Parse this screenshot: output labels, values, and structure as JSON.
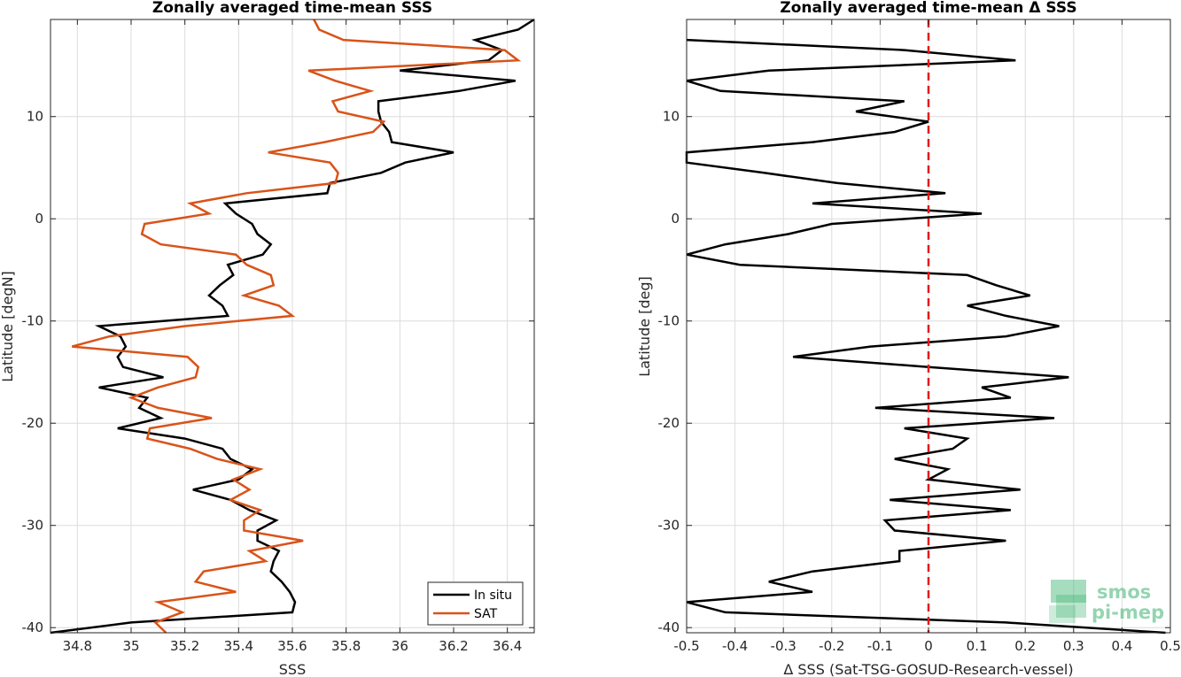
{
  "chart_data": [
    {
      "type": "line",
      "title": "Zonally averaged time-mean SSS",
      "xlabel": "SSS",
      "ylabel": "Latitude [degN]",
      "xlim": [
        34.7,
        36.5
      ],
      "ylim": [
        -40.5,
        19.5
      ],
      "xticks": [
        34.8,
        35,
        35.2,
        35.4,
        35.6,
        35.8,
        36,
        36.2,
        36.4
      ],
      "xtick_labels": [
        "34.8",
        "35",
        "35.2",
        "35.4",
        "35.6",
        "35.8",
        "36",
        "36.2",
        "36.4"
      ],
      "yticks": [
        -40,
        -30,
        -20,
        -10,
        0,
        10
      ],
      "ytick_labels": [
        "-40",
        "-30",
        "-20",
        "-10",
        "0",
        "10"
      ],
      "grid": true,
      "legend_position": "bottom-right",
      "series": [
        {
          "name": "In situ",
          "color": "#000000",
          "y": [
            19.5,
            18.5,
            17.5,
            16.5,
            15.5,
            14.5,
            13.5,
            12.5,
            11.5,
            10.5,
            9.5,
            8.5,
            7.5,
            6.5,
            5.5,
            4.5,
            3.5,
            2.5,
            1.5,
            0.5,
            -0.5,
            -1.5,
            -2.5,
            -3.5,
            -4.5,
            -5.5,
            -6.5,
            -7.5,
            -8.5,
            -9.5,
            -10.5,
            -11.5,
            -12.5,
            -13.5,
            -14.5,
            -15.5,
            -16.5,
            -17.5,
            -18.5,
            -19.5,
            -20.5,
            -21.5,
            -22.5,
            -23.5,
            -24.5,
            -25.5,
            -26.5,
            -27.5,
            -28.5,
            -29.5,
            -30.5,
            -31.5,
            -32.5,
            -33.5,
            -34.5,
            -35.5,
            -36.5,
            -37.5,
            -38.5,
            -39.5,
            -40.5
          ],
          "x": [
            36.5,
            36.44,
            36.28,
            36.38,
            36.33,
            36.0,
            36.43,
            36.22,
            35.92,
            35.92,
            35.93,
            35.96,
            35.97,
            36.2,
            36.02,
            35.93,
            35.74,
            35.73,
            35.35,
            35.39,
            35.45,
            35.47,
            35.52,
            35.49,
            35.36,
            35.38,
            35.33,
            35.29,
            35.34,
            35.36,
            34.88,
            34.96,
            34.98,
            34.95,
            34.97,
            35.12,
            34.88,
            35.06,
            35.03,
            35.11,
            34.95,
            35.2,
            35.34,
            35.37,
            35.45,
            35.4,
            35.23,
            35.37,
            35.44,
            35.54,
            35.47,
            35.47,
            35.55,
            35.53,
            35.52,
            35.56,
            35.59,
            35.61,
            35.6,
            35.0,
            34.7
          ]
        },
        {
          "name": "SAT",
          "color": "#d95319",
          "y": [
            19.5,
            18.5,
            17.5,
            16.5,
            15.5,
            14.5,
            13.5,
            12.5,
            11.5,
            10.5,
            9.5,
            8.5,
            7.5,
            6.5,
            5.5,
            4.5,
            3.5,
            2.5,
            1.5,
            0.5,
            -0.5,
            -1.5,
            -2.5,
            -3.5,
            -4.5,
            -5.5,
            -6.5,
            -7.5,
            -8.5,
            -9.5,
            -10.5,
            -11.5,
            -12.5,
            -13.5,
            -14.5,
            -15.5,
            -16.5,
            -17.5,
            -18.5,
            -19.5,
            -20.5,
            -21.5,
            -22.5,
            -23.5,
            -24.5,
            -25.5,
            -26.5,
            -27.5,
            -28.5,
            -29.5,
            -30.5,
            -31.5,
            -32.5,
            -33.5,
            -34.5,
            -35.5,
            -36.5,
            -37.5,
            -38.5,
            -39.5,
            -40.5
          ],
          "x": [
            35.68,
            35.7,
            35.79,
            36.39,
            36.44,
            35.66,
            35.76,
            35.89,
            35.75,
            35.77,
            35.94,
            35.9,
            35.72,
            35.51,
            35.74,
            35.77,
            35.76,
            35.43,
            35.22,
            35.29,
            35.05,
            35.04,
            35.11,
            35.39,
            35.43,
            35.52,
            35.53,
            35.42,
            35.55,
            35.6,
            35.2,
            34.92,
            34.78,
            35.21,
            35.25,
            35.24,
            35.1,
            35.0,
            35.1,
            35.3,
            35.07,
            35.06,
            35.22,
            35.32,
            35.48,
            35.38,
            35.44,
            35.37,
            35.48,
            35.42,
            35.42,
            35.64,
            35.44,
            35.5,
            35.27,
            35.24,
            35.39,
            35.1,
            35.19,
            35.09,
            35.13
          ]
        }
      ]
    },
    {
      "type": "line",
      "title": "Zonally averaged time-mean Δ SSS",
      "xlabel": "Δ SSS (Sat-TSG-GOSUD-Research-vessel)",
      "ylabel": "Latitude [deg]",
      "xlim": [
        -0.5,
        0.5
      ],
      "ylim": [
        -40.5,
        19.5
      ],
      "xticks": [
        -0.5,
        -0.4,
        -0.3,
        -0.2,
        -0.1,
        0,
        0.1,
        0.2,
        0.3,
        0.4,
        0.5
      ],
      "xtick_labels": [
        "-0.5",
        "-0.4",
        "-0.3",
        "-0.2",
        "-0.1",
        "0",
        "0.1",
        "0.2",
        "0.3",
        "0.4",
        "0.5"
      ],
      "yticks": [
        -40,
        -30,
        -20,
        -10,
        0,
        10
      ],
      "ytick_labels": [
        "-40",
        "-30",
        "-20",
        "-10",
        "0",
        "10"
      ],
      "grid": true,
      "reference_line": {
        "x": 0,
        "color": "#e41a1c",
        "style": "dashed"
      },
      "series": [
        {
          "color": "#000000",
          "y": [
            17.5,
            16.5,
            15.5,
            14.5,
            13.5,
            12.5,
            11.5,
            10.5,
            9.5,
            8.5,
            7.5,
            6.5,
            5.5,
            4.5,
            3.5,
            2.5,
            1.5,
            0.5,
            -0.5,
            -1.5,
            -2.5,
            -3.5,
            -4.5,
            -5.5,
            -6.5,
            -7.5,
            -8.5,
            -9.5,
            -10.5,
            -11.5,
            -12.5,
            -13.5,
            -14.5,
            -15.5,
            -16.5,
            -17.5,
            -18.5,
            -19.5,
            -20.5,
            -21.5,
            -22.5,
            -23.5,
            -24.5,
            -25.5,
            -26.5,
            -27.5,
            -28.5,
            -29.5,
            -30.5,
            -31.5,
            -32.5,
            -33.5,
            -34.5,
            -35.5,
            -36.5,
            -37.5,
            -38.5,
            -39.5,
            -40.5
          ],
          "x": [
            -0.5,
            -0.05,
            0.18,
            -0.33,
            -0.5,
            -0.43,
            -0.05,
            -0.15,
            0.0,
            -0.07,
            -0.24,
            -0.5,
            -0.5,
            -0.34,
            -0.19,
            0.035,
            -0.24,
            0.11,
            -0.2,
            -0.29,
            -0.42,
            -0.5,
            -0.39,
            0.08,
            0.14,
            0.21,
            0.08,
            0.16,
            0.27,
            0.16,
            -0.12,
            -0.28,
            0.0,
            0.29,
            0.11,
            0.17,
            -0.11,
            0.26,
            -0.05,
            0.08,
            0.05,
            -0.07,
            0.04,
            0.0,
            0.19,
            -0.08,
            0.17,
            -0.09,
            -0.07,
            0.16,
            -0.06,
            -0.06,
            -0.24,
            -0.33,
            -0.24,
            -0.5,
            -0.42,
            0.16,
            0.49
          ]
        }
      ]
    }
  ],
  "legend": {
    "items": [
      {
        "label": "In situ",
        "color": "#000000"
      },
      {
        "label": "SAT",
        "color": "#d95319"
      }
    ]
  },
  "logo": {
    "line1": "smos",
    "line2": "pi-mep",
    "color": "#3cb371"
  }
}
